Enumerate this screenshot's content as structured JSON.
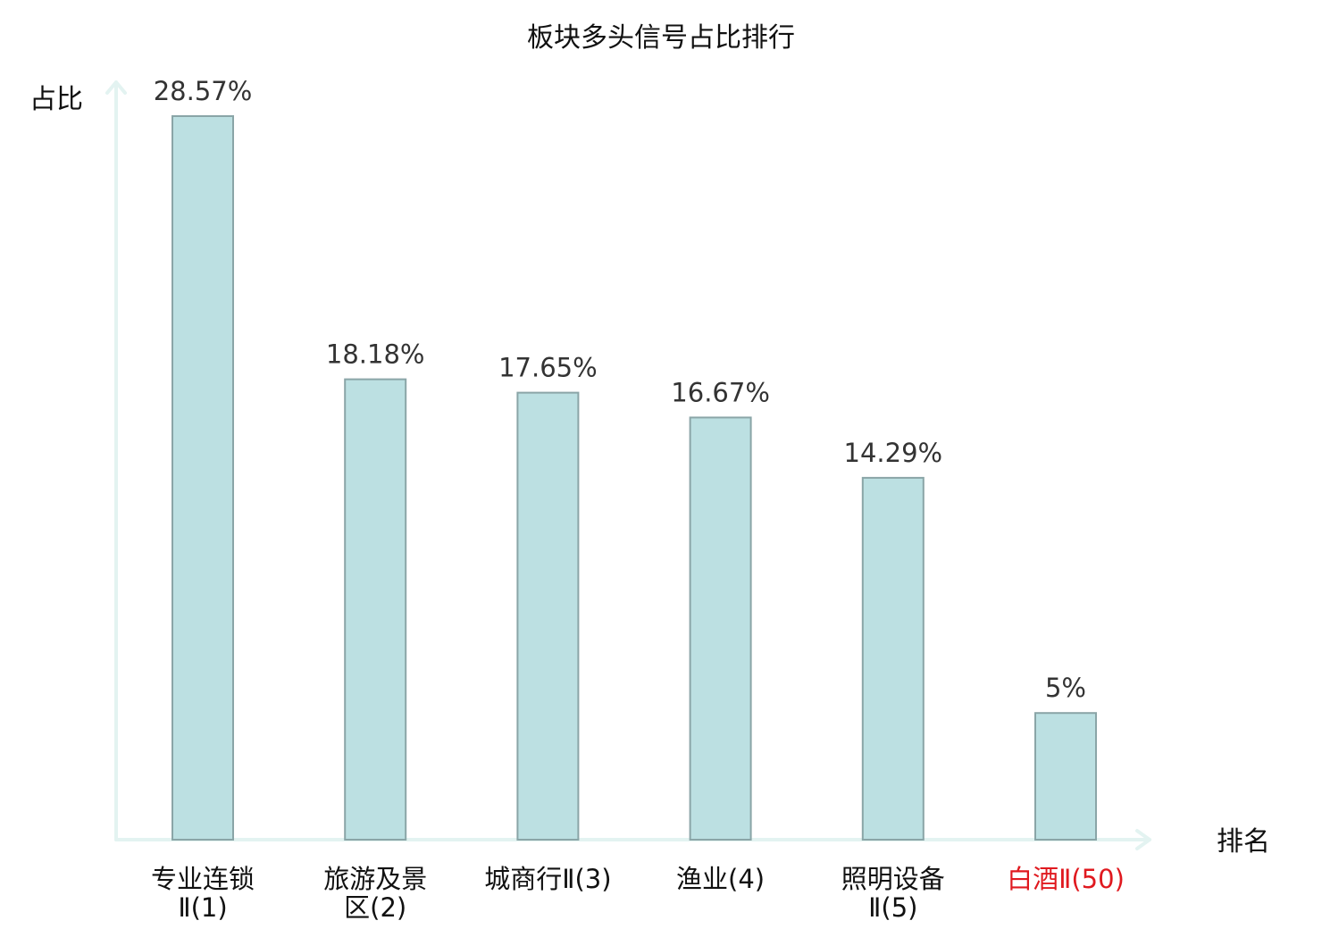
{
  "chart_data": {
    "type": "bar",
    "title": "板块多头信号占比排行",
    "xlabel": "排名",
    "ylabel": "占比",
    "categories": [
      [
        "专业连锁",
        "Ⅱ(1)"
      ],
      [
        "旅游及景",
        "区(2)"
      ],
      [
        "城商行Ⅱ(3)"
      ],
      [
        "渔业(4)"
      ],
      [
        "照明设备",
        "Ⅱ(5)"
      ],
      [
        "白酒Ⅱ(50)"
      ]
    ],
    "values": [
      28.57,
      18.18,
      17.65,
      16.67,
      14.29,
      5
    ],
    "value_labels": [
      "28.57%",
      "18.18%",
      "17.65%",
      "16.67%",
      "14.29%",
      "5%"
    ],
    "highlighted_category_index": 5,
    "ylim": [
      0,
      30
    ],
    "grid": false,
    "colors": {
      "bar_fill": "#bce0e2",
      "bar_stroke": "#8aa5a7",
      "axis": "#e3f3f1",
      "label": "#333333",
      "highlight_label": "#e0191f"
    }
  }
}
